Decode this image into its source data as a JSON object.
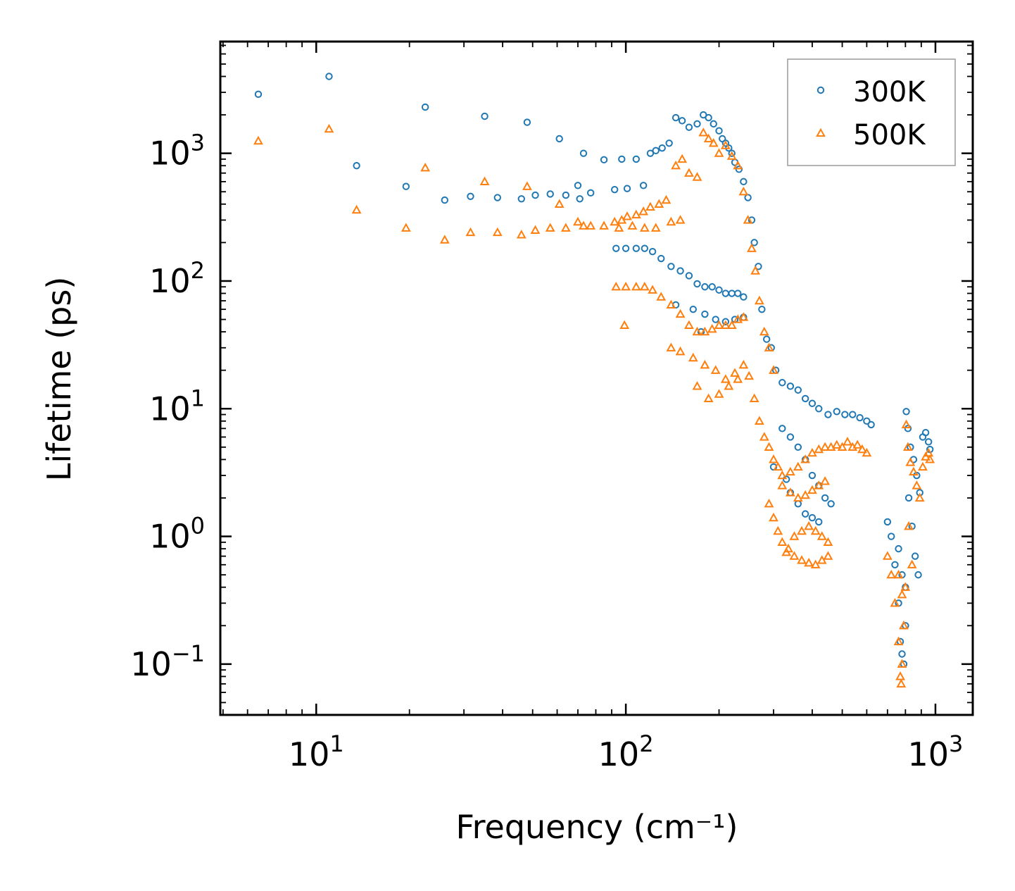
{
  "chart_data": {
    "type": "scatter",
    "xscale": "log",
    "yscale": "log",
    "xlabel": "Frequency (cm⁻¹)",
    "ylabel": "Lifetime (ps)",
    "xlim": [
      4.9,
      1320
    ],
    "ylim": [
      0.04,
      7500
    ],
    "xticks": [
      {
        "value": 10,
        "base": "10",
        "exp": "1"
      },
      {
        "value": 100,
        "base": "10",
        "exp": "2"
      },
      {
        "value": 1000,
        "base": "10",
        "exp": "3"
      }
    ],
    "yticks": [
      {
        "value": 0.1,
        "base": "10",
        "exp": "−1"
      },
      {
        "value": 1,
        "base": "10",
        "exp": "0"
      },
      {
        "value": 10,
        "base": "10",
        "exp": "1"
      },
      {
        "value": 100,
        "base": "10",
        "exp": "2"
      },
      {
        "value": 1000,
        "base": "10",
        "exp": "3"
      }
    ],
    "legend_position": "top-right",
    "series": [
      {
        "name": "300K",
        "marker": "circle",
        "color": "#1f77b4",
        "points": [
          [
            6.5,
            2900
          ],
          [
            11,
            4000
          ],
          [
            13.5,
            800
          ],
          [
            19.5,
            550
          ],
          [
            22.5,
            2300
          ],
          [
            26,
            430
          ],
          [
            31.5,
            460
          ],
          [
            35,
            1950
          ],
          [
            38.5,
            450
          ],
          [
            46,
            440
          ],
          [
            48,
            1750
          ],
          [
            51,
            470
          ],
          [
            57,
            480
          ],
          [
            61,
            1300
          ],
          [
            64,
            470
          ],
          [
            70,
            560
          ],
          [
            71,
            440
          ],
          [
            73,
            1000
          ],
          [
            77,
            490
          ],
          [
            85,
            890
          ],
          [
            92,
            520
          ],
          [
            97,
            900
          ],
          [
            101,
            530
          ],
          [
            108,
            900
          ],
          [
            114,
            560
          ],
          [
            120,
            1000
          ],
          [
            125,
            1050
          ],
          [
            131,
            1100
          ],
          [
            138,
            1200
          ],
          [
            145,
            1900
          ],
          [
            152,
            1800
          ],
          [
            160,
            1600
          ],
          [
            170,
            1700
          ],
          [
            178,
            2000
          ],
          [
            185,
            1900
          ],
          [
            192,
            1700
          ],
          [
            200,
            1500
          ],
          [
            205,
            1300
          ],
          [
            210,
            1200
          ],
          [
            215,
            1100
          ],
          [
            220,
            1000
          ],
          [
            225,
            850
          ],
          [
            232,
            750
          ],
          [
            240,
            600
          ],
          [
            248,
            450
          ],
          [
            255,
            300
          ],
          [
            260,
            200
          ],
          [
            268,
            130
          ],
          [
            275,
            60
          ],
          [
            285,
            35
          ],
          [
            295,
            30
          ],
          [
            305,
            20
          ],
          [
            320,
            16
          ],
          [
            340,
            15
          ],
          [
            360,
            14
          ],
          [
            380,
            12
          ],
          [
            400,
            11
          ],
          [
            420,
            10
          ],
          [
            450,
            9
          ],
          [
            480,
            9.5
          ],
          [
            510,
            9
          ],
          [
            540,
            9
          ],
          [
            570,
            8.5
          ],
          [
            600,
            8
          ],
          [
            620,
            7.5
          ],
          [
            93,
            180
          ],
          [
            100,
            180
          ],
          [
            108,
            180
          ],
          [
            115,
            180
          ],
          [
            122,
            170
          ],
          [
            130,
            150
          ],
          [
            140,
            130
          ],
          [
            150,
            120
          ],
          [
            160,
            110
          ],
          [
            170,
            95
          ],
          [
            180,
            90
          ],
          [
            190,
            90
          ],
          [
            200,
            85
          ],
          [
            210,
            80
          ],
          [
            220,
            80
          ],
          [
            230,
            80
          ],
          [
            240,
            75
          ],
          [
            165,
            60
          ],
          [
            180,
            55
          ],
          [
            195,
            50
          ],
          [
            210,
            48
          ],
          [
            225,
            50
          ],
          [
            240,
            52
          ],
          [
            145,
            65
          ],
          [
            175,
            40
          ],
          [
            320,
            7
          ],
          [
            340,
            6
          ],
          [
            360,
            5
          ],
          [
            380,
            4
          ],
          [
            400,
            3
          ],
          [
            420,
            2.5
          ],
          [
            440,
            2
          ],
          [
            460,
            1.8
          ],
          [
            340,
            2.2
          ],
          [
            360,
            1.8
          ],
          [
            380,
            1.5
          ],
          [
            400,
            1.4
          ],
          [
            420,
            1.3
          ],
          [
            300,
            3.5
          ],
          [
            330,
            2.8
          ],
          [
            700,
            1.3
          ],
          [
            720,
            1.0
          ],
          [
            740,
            0.6
          ],
          [
            760,
            0.3
          ],
          [
            770,
            0.15
          ],
          [
            780,
            0.12
          ],
          [
            790,
            0.1
          ],
          [
            800,
            0.2
          ],
          [
            805,
            9.5
          ],
          [
            815,
            7
          ],
          [
            830,
            5
          ],
          [
            850,
            4
          ],
          [
            870,
            3
          ],
          [
            890,
            2.2
          ],
          [
            910,
            6
          ],
          [
            930,
            6.5
          ],
          [
            950,
            5.5
          ],
          [
            960,
            4.8
          ],
          [
            820,
            2
          ],
          [
            840,
            1.2
          ],
          [
            860,
            0.7
          ],
          [
            880,
            0.5
          ],
          [
            760,
            0.8
          ],
          [
            780,
            0.5
          ],
          [
            800,
            0.4
          ]
        ]
      },
      {
        "name": "500K",
        "marker": "triangle",
        "color": "#ff7f0e",
        "points": [
          [
            6.5,
            1250
          ],
          [
            11,
            1550
          ],
          [
            13.5,
            360
          ],
          [
            19.5,
            260
          ],
          [
            22.5,
            770
          ],
          [
            26,
            210
          ],
          [
            31.5,
            240
          ],
          [
            35,
            600
          ],
          [
            38.5,
            240
          ],
          [
            46,
            230
          ],
          [
            48,
            550
          ],
          [
            51,
            250
          ],
          [
            57,
            260
          ],
          [
            61,
            400
          ],
          [
            64,
            260
          ],
          [
            70,
            290
          ],
          [
            73,
            270
          ],
          [
            77,
            270
          ],
          [
            85,
            270
          ],
          [
            92,
            290
          ],
          [
            97,
            300
          ],
          [
            101,
            320
          ],
          [
            108,
            330
          ],
          [
            114,
            350
          ],
          [
            120,
            380
          ],
          [
            128,
            400
          ],
          [
            135,
            430
          ],
          [
            145,
            800
          ],
          [
            152,
            900
          ],
          [
            160,
            700
          ],
          [
            170,
            650
          ],
          [
            178,
            1450
          ],
          [
            185,
            1300
          ],
          [
            192,
            1200
          ],
          [
            200,
            1000
          ],
          [
            210,
            1150
          ],
          [
            220,
            950
          ],
          [
            230,
            800
          ],
          [
            240,
            500
          ],
          [
            248,
            300
          ],
          [
            255,
            180
          ],
          [
            262,
            120
          ],
          [
            270,
            70
          ],
          [
            280,
            40
          ],
          [
            290,
            30
          ],
          [
            300,
            20
          ],
          [
            95,
            260
          ],
          [
            105,
            270
          ],
          [
            115,
            260
          ],
          [
            125,
            260
          ],
          [
            140,
            290
          ],
          [
            150,
            300
          ],
          [
            93,
            90
          ],
          [
            100,
            90
          ],
          [
            108,
            90
          ],
          [
            115,
            90
          ],
          [
            122,
            85
          ],
          [
            130,
            75
          ],
          [
            140,
            65
          ],
          [
            150,
            55
          ],
          [
            160,
            45
          ],
          [
            170,
            40
          ],
          [
            180,
            40
          ],
          [
            190,
            42
          ],
          [
            200,
            45
          ],
          [
            210,
            45
          ],
          [
            220,
            45
          ],
          [
            230,
            50
          ],
          [
            240,
            52
          ],
          [
            99,
            45
          ],
          [
            140,
            30
          ],
          [
            150,
            28
          ],
          [
            165,
            25
          ],
          [
            180,
            22
          ],
          [
            195,
            20
          ],
          [
            210,
            17
          ],
          [
            225,
            19
          ],
          [
            240,
            22
          ],
          [
            170,
            15
          ],
          [
            185,
            12
          ],
          [
            200,
            13
          ],
          [
            215,
            15
          ],
          [
            230,
            17
          ],
          [
            250,
            18
          ],
          [
            260,
            12
          ],
          [
            270,
            8
          ],
          [
            280,
            6
          ],
          [
            290,
            5
          ],
          [
            300,
            4
          ],
          [
            310,
            3.5
          ],
          [
            320,
            3
          ],
          [
            340,
            3.2
          ],
          [
            360,
            3.5
          ],
          [
            380,
            4
          ],
          [
            400,
            4.5
          ],
          [
            420,
            4.8
          ],
          [
            440,
            5
          ],
          [
            460,
            5
          ],
          [
            480,
            5.2
          ],
          [
            500,
            5
          ],
          [
            520,
            5.5
          ],
          [
            540,
            5
          ],
          [
            560,
            5.2
          ],
          [
            580,
            4.8
          ],
          [
            600,
            4.5
          ],
          [
            290,
            1.8
          ],
          [
            300,
            1.4
          ],
          [
            310,
            1.1
          ],
          [
            320,
            0.9
          ],
          [
            335,
            0.8
          ],
          [
            350,
            1.0
          ],
          [
            370,
            1.1
          ],
          [
            390,
            1.2
          ],
          [
            410,
            1.1
          ],
          [
            430,
            1.0
          ],
          [
            450,
            0.9
          ],
          [
            330,
            0.75
          ],
          [
            350,
            0.7
          ],
          [
            370,
            0.65
          ],
          [
            390,
            0.62
          ],
          [
            410,
            0.6
          ],
          [
            430,
            0.65
          ],
          [
            450,
            0.7
          ],
          [
            320,
            2.5
          ],
          [
            340,
            2.2
          ],
          [
            360,
            2
          ],
          [
            380,
            2.1
          ],
          [
            400,
            2.3
          ],
          [
            420,
            2.5
          ],
          [
            440,
            2.7
          ],
          [
            700,
            0.7
          ],
          [
            720,
            0.5
          ],
          [
            740,
            0.3
          ],
          [
            760,
            0.15
          ],
          [
            770,
            0.08
          ],
          [
            775,
            0.07
          ],
          [
            780,
            0.1
          ],
          [
            790,
            0.2
          ],
          [
            800,
            0.4
          ],
          [
            805,
            7.5
          ],
          [
            815,
            5
          ],
          [
            830,
            3.8
          ],
          [
            850,
            3.2
          ],
          [
            870,
            2.5
          ],
          [
            890,
            2
          ],
          [
            910,
            3.5
          ],
          [
            930,
            4.2
          ],
          [
            950,
            4.5
          ],
          [
            960,
            4
          ],
          [
            820,
            1.2
          ],
          [
            840,
            0.6
          ],
          [
            760,
            0.5
          ],
          [
            780,
            0.35
          ]
        ]
      }
    ]
  }
}
